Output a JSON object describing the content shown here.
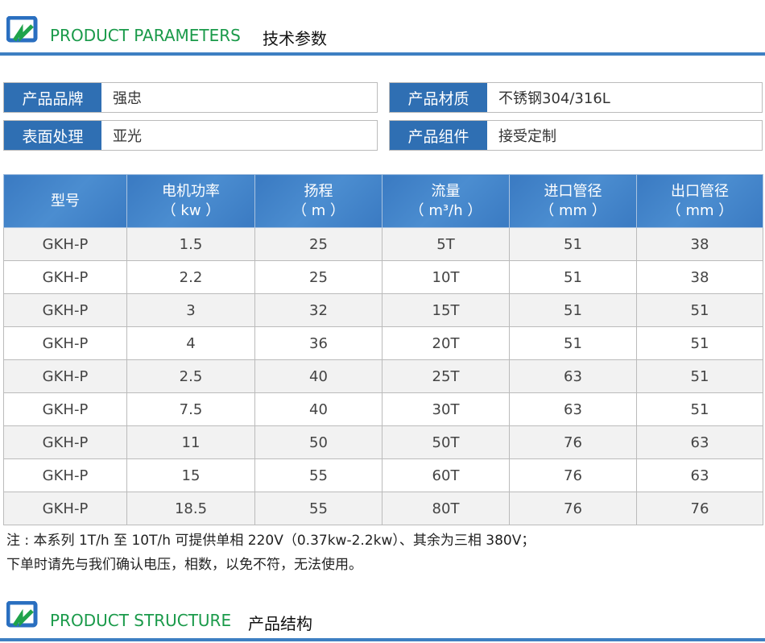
{
  "section1": {
    "title_en": "PRODUCT PARAMETERS",
    "title_cn": "技术参数"
  },
  "specs": [
    {
      "label": "产品品牌",
      "value": "强忠"
    },
    {
      "label": "产品材质",
      "value": "不锈钢304/316L"
    },
    {
      "label": "表面处理",
      "value": "亚光"
    },
    {
      "label": "产品组件",
      "value": "接受定制"
    }
  ],
  "table": {
    "headers": [
      [
        "型号",
        ""
      ],
      [
        "电机功率",
        "（ kw ）"
      ],
      [
        "扬程",
        "（ m ）"
      ],
      [
        "流量",
        "（ m³/h ）"
      ],
      [
        "进口管径",
        "（ mm ）"
      ],
      [
        "出口管径",
        "（ mm ）"
      ]
    ],
    "rows": [
      [
        "GKH-P",
        "1.5",
        "25",
        "5T",
        "51",
        "38"
      ],
      [
        "GKH-P",
        "2.2",
        "25",
        "10T",
        "51",
        "38"
      ],
      [
        "GKH-P",
        "3",
        "32",
        "15T",
        "51",
        "51"
      ],
      [
        "GKH-P",
        "4",
        "36",
        "20T",
        "51",
        "51"
      ],
      [
        "GKH-P",
        "2.5",
        "40",
        "25T",
        "63",
        "51"
      ],
      [
        "GKH-P",
        "7.5",
        "40",
        "30T",
        "63",
        "51"
      ],
      [
        "GKH-P",
        "11",
        "50",
        "50T",
        "76",
        "63"
      ],
      [
        "GKH-P",
        "15",
        "55",
        "60T",
        "76",
        "63"
      ],
      [
        "GKH-P",
        "18.5",
        "55",
        "80T",
        "76",
        "76"
      ]
    ]
  },
  "note": [
    "注 : 本系列 1T/h 至 10T/h 可提供单相 220V（0.37kw-2.2kw）、其余为三相 380V；",
    "下单时请先与我们确认电压，相数，以免不符，无法使用。"
  ],
  "section2": {
    "title_en": "PRODUCT STRUCTURE",
    "title_cn": "产品结构"
  }
}
